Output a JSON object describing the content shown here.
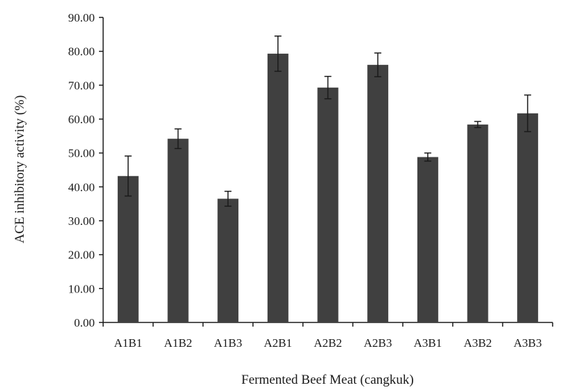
{
  "chart_data": {
    "type": "bar",
    "title": "",
    "xlabel": "Fermented Beef Meat (cangkuk)",
    "ylabel": "ACE inhibitory activity (%)",
    "ylim": [
      0,
      90
    ],
    "ytick_values": [
      0,
      10,
      20,
      30,
      40,
      50,
      60,
      70,
      80,
      90
    ],
    "ytick_labels": [
      "0.00",
      "10.00",
      "20.00",
      "30.00",
      "40.00",
      "50.00",
      "60.00",
      "70.00",
      "80.00",
      "90.00"
    ],
    "categories": [
      "A1B1",
      "A1B2",
      "A1B3",
      "A2B1",
      "A2B2",
      "A2B3",
      "A3B1",
      "A3B2",
      "A3B3"
    ],
    "values": [
      43.2,
      54.2,
      36.5,
      79.3,
      69.3,
      76.0,
      48.8,
      58.4,
      61.7
    ],
    "error_bars": [
      5.9,
      2.9,
      2.2,
      5.2,
      3.3,
      3.5,
      1.2,
      0.9,
      5.4
    ],
    "bar_color": "#404040",
    "grid": false,
    "legend": "none"
  }
}
